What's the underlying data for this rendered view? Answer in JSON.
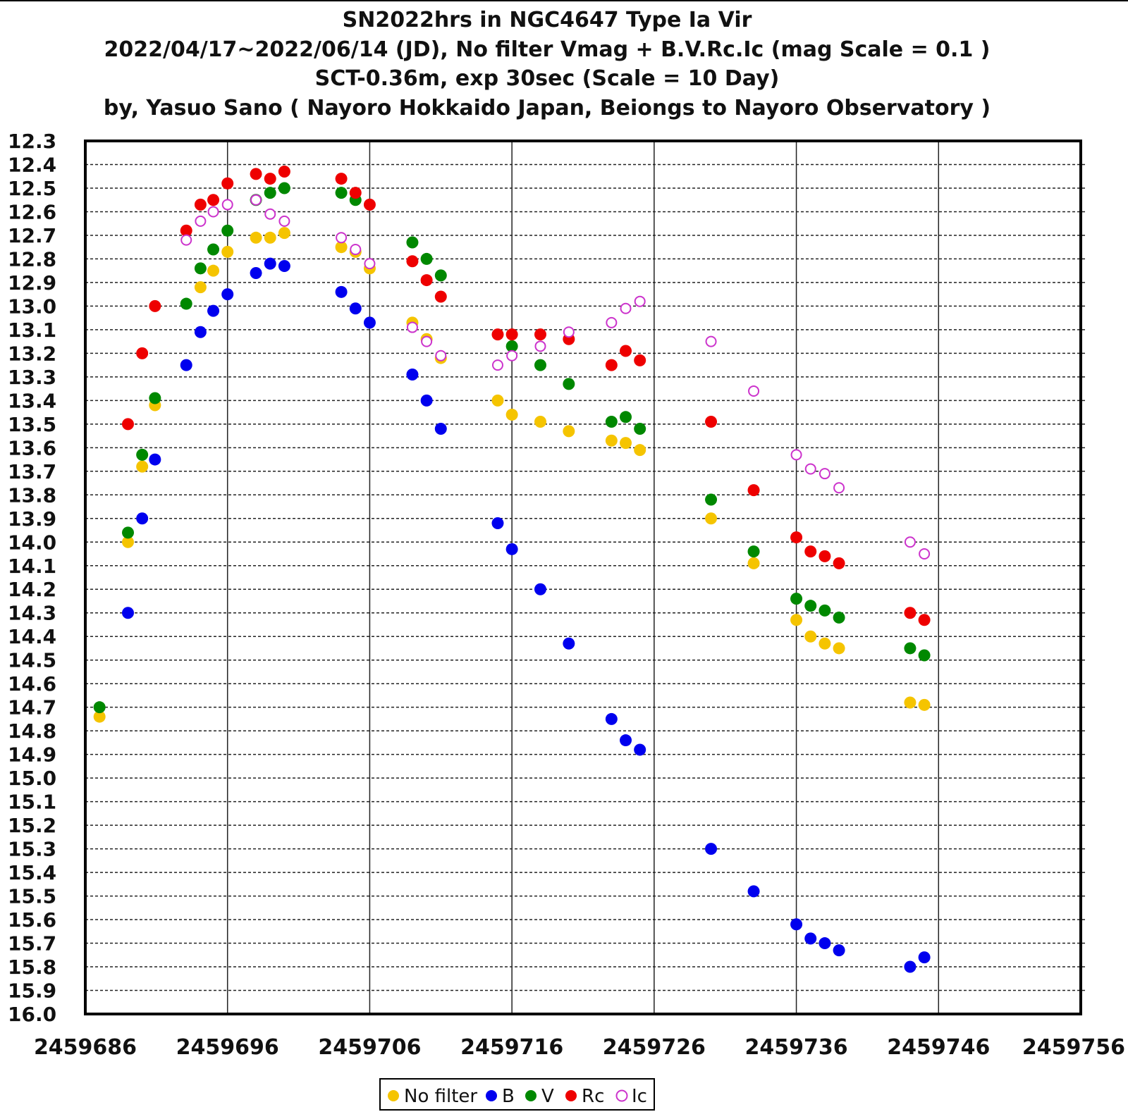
{
  "chart_data": {
    "type": "scatter",
    "title_lines": [
      "SN2022hrs in NGC4647 Type Ia Vir",
      "2022/04/17~2022/06/14 (JD),  No filter Vmag + B.V.Rc.Ic (mag Scale = 0.1 )",
      "SCT-0.36m, exp 30sec (Scale = 10 Day)",
      "by, Yasuo Sano ( Nayoro Hokkaido Japan,  Beiongs to Nayoro Observatory  )"
    ],
    "xlim": [
      2459686,
      2459756
    ],
    "ylim": [
      12.3,
      16.0
    ],
    "y_inverted": true,
    "x_ticks": [
      2459686,
      2459696,
      2459706,
      2459716,
      2459726,
      2459736,
      2459746,
      2459756
    ],
    "x_tick_labels": [
      "2459686",
      "2459696",
      "2459706",
      "2459716",
      "2459726",
      "2459736",
      "2459746",
      "2459756"
    ],
    "y_ticks": [
      12.3,
      12.4,
      12.5,
      12.6,
      12.7,
      12.8,
      12.9,
      13.0,
      13.1,
      13.2,
      13.3,
      13.4,
      13.5,
      13.6,
      13.7,
      13.8,
      13.9,
      14.0,
      14.1,
      14.2,
      14.3,
      14.4,
      14.5,
      14.6,
      14.7,
      14.8,
      14.9,
      15.0,
      15.1,
      15.2,
      15.3,
      15.4,
      15.5,
      15.6,
      15.7,
      15.8,
      15.9,
      16.0
    ],
    "y_tick_labels": [
      "12.3",
      "12.4",
      "12.5",
      "12.6",
      "12.7",
      "12.8",
      "12.9",
      "13.0",
      "13.1",
      "13.2",
      "13.3",
      "13.4",
      "13.5",
      "13.6",
      "13.7",
      "13.8",
      "13.9",
      "14.0",
      "14.1",
      "14.2",
      "14.3",
      "14.4",
      "14.5",
      "14.6",
      "14.7",
      "14.8",
      "14.9",
      "15.0",
      "15.1",
      "15.2",
      "15.3",
      "15.4",
      "15.5",
      "15.6",
      "15.7",
      "15.8",
      "15.9",
      "16.0"
    ],
    "grid": "horizontal dashed every 0.1 mag, vertical solid every 10 days",
    "legend_position": "bottom-center",
    "series": [
      {
        "name": "No filter",
        "color": "#f5c400",
        "marker": "filled-circle",
        "x": [
          2459687.0,
          2459689.0,
          2459690.0,
          2459690.9,
          2459694.1,
          2459695.0,
          2459696.0,
          2459698.0,
          2459699.0,
          2459700.0,
          2459704.0,
          2459705.0,
          2459706.0,
          2459709.0,
          2459710.0,
          2459711.0,
          2459715.0,
          2459716.0,
          2459718.0,
          2459720.0,
          2459723.0,
          2459724.0,
          2459725.0,
          2459730.0,
          2459733.0,
          2459736.0,
          2459737.0,
          2459738.0,
          2459739.0,
          2459744.0,
          2459745.0
        ],
        "y": [
          14.74,
          14.0,
          13.68,
          13.42,
          12.92,
          12.85,
          12.77,
          12.71,
          12.71,
          12.69,
          12.75,
          12.77,
          12.84,
          13.07,
          13.14,
          13.22,
          13.4,
          13.46,
          13.49,
          13.53,
          13.57,
          13.58,
          13.61,
          13.9,
          14.09,
          14.33,
          14.4,
          14.43,
          14.45,
          14.68,
          14.69
        ]
      },
      {
        "name": "B",
        "color": "#0000ee",
        "marker": "filled-circle",
        "x": [
          2459689.0,
          2459690.0,
          2459690.9,
          2459693.1,
          2459694.1,
          2459695.0,
          2459696.0,
          2459698.0,
          2459699.0,
          2459700.0,
          2459704.0,
          2459705.0,
          2459706.0,
          2459709.0,
          2459710.0,
          2459711.0,
          2459715.0,
          2459716.0,
          2459718.0,
          2459720.0,
          2459723.0,
          2459724.0,
          2459725.0,
          2459730.0,
          2459733.0,
          2459736.0,
          2459737.0,
          2459738.0,
          2459739.0,
          2459744.0,
          2459745.0
        ],
        "y": [
          14.3,
          13.9,
          13.65,
          13.25,
          13.11,
          13.02,
          12.95,
          12.86,
          12.82,
          12.83,
          12.94,
          13.01,
          13.07,
          13.29,
          13.4,
          13.52,
          13.92,
          14.03,
          14.2,
          14.43,
          14.75,
          14.84,
          14.88,
          15.3,
          15.48,
          15.62,
          15.68,
          15.7,
          15.73,
          15.8,
          15.76
        ]
      },
      {
        "name": "V",
        "color": "#008800",
        "marker": "filled-circle",
        "x": [
          2459687.0,
          2459689.0,
          2459690.0,
          2459690.9,
          2459693.1,
          2459694.1,
          2459695.0,
          2459696.0,
          2459698.0,
          2459699.0,
          2459700.0,
          2459704.0,
          2459705.0,
          2459709.0,
          2459710.0,
          2459711.0,
          2459716.0,
          2459718.0,
          2459720.0,
          2459723.0,
          2459724.0,
          2459725.0,
          2459730.0,
          2459733.0,
          2459736.0,
          2459737.0,
          2459738.0,
          2459739.0,
          2459744.0,
          2459745.0
        ],
        "y": [
          14.7,
          13.96,
          13.63,
          13.39,
          12.99,
          12.84,
          12.76,
          12.68,
          12.55,
          12.52,
          12.5,
          12.52,
          12.55,
          12.73,
          12.8,
          12.87,
          13.17,
          13.25,
          13.33,
          13.49,
          13.47,
          13.52,
          13.82,
          14.04,
          14.24,
          14.27,
          14.29,
          14.32,
          14.45,
          14.48
        ]
      },
      {
        "name": "Rc",
        "color": "#ee0000",
        "marker": "filled-circle",
        "x": [
          2459689.0,
          2459690.0,
          2459690.9,
          2459693.1,
          2459694.1,
          2459695.0,
          2459696.0,
          2459698.0,
          2459699.0,
          2459700.0,
          2459704.0,
          2459705.0,
          2459706.0,
          2459709.0,
          2459710.0,
          2459711.0,
          2459715.0,
          2459716.0,
          2459718.0,
          2459720.0,
          2459723.0,
          2459724.0,
          2459725.0,
          2459730.0,
          2459733.0,
          2459736.0,
          2459737.0,
          2459738.0,
          2459739.0,
          2459744.0,
          2459745.0
        ],
        "y": [
          13.5,
          13.2,
          13.0,
          12.68,
          12.57,
          12.55,
          12.48,
          12.44,
          12.46,
          12.43,
          12.46,
          12.52,
          12.57,
          12.81,
          12.89,
          12.96,
          13.12,
          13.12,
          13.12,
          13.14,
          13.25,
          13.19,
          13.23,
          13.49,
          13.78,
          13.98,
          14.04,
          14.06,
          14.09,
          14.3,
          14.33
        ]
      },
      {
        "name": "Ic",
        "color": "#cc33cc",
        "marker": "open-circle",
        "x": [
          2459693.1,
          2459694.1,
          2459695.0,
          2459696.0,
          2459698.0,
          2459699.0,
          2459700.0,
          2459704.0,
          2459705.0,
          2459706.0,
          2459709.0,
          2459710.0,
          2459711.0,
          2459715.0,
          2459716.0,
          2459718.0,
          2459720.0,
          2459723.0,
          2459724.0,
          2459725.0,
          2459730.0,
          2459733.0,
          2459736.0,
          2459737.0,
          2459738.0,
          2459739.0,
          2459744.0,
          2459745.0
        ],
        "y": [
          12.72,
          12.64,
          12.6,
          12.57,
          12.55,
          12.61,
          12.64,
          12.71,
          12.76,
          12.82,
          13.09,
          13.15,
          13.21,
          13.25,
          13.21,
          13.17,
          13.11,
          13.07,
          13.01,
          12.98,
          13.15,
          13.36,
          13.63,
          13.69,
          13.71,
          13.77,
          14.0,
          14.05
        ]
      }
    ]
  },
  "legend": {
    "items": [
      {
        "label": "No filter",
        "color": "#f5c400",
        "marker": "filled-circle"
      },
      {
        "label": "B",
        "color": "#0000ee",
        "marker": "filled-circle"
      },
      {
        "label": "V",
        "color": "#008800",
        "marker": "filled-circle"
      },
      {
        "label": "Rc",
        "color": "#ee0000",
        "marker": "filled-circle"
      },
      {
        "label": "Ic",
        "color": "#cc33cc",
        "marker": "open-circle"
      }
    ]
  }
}
